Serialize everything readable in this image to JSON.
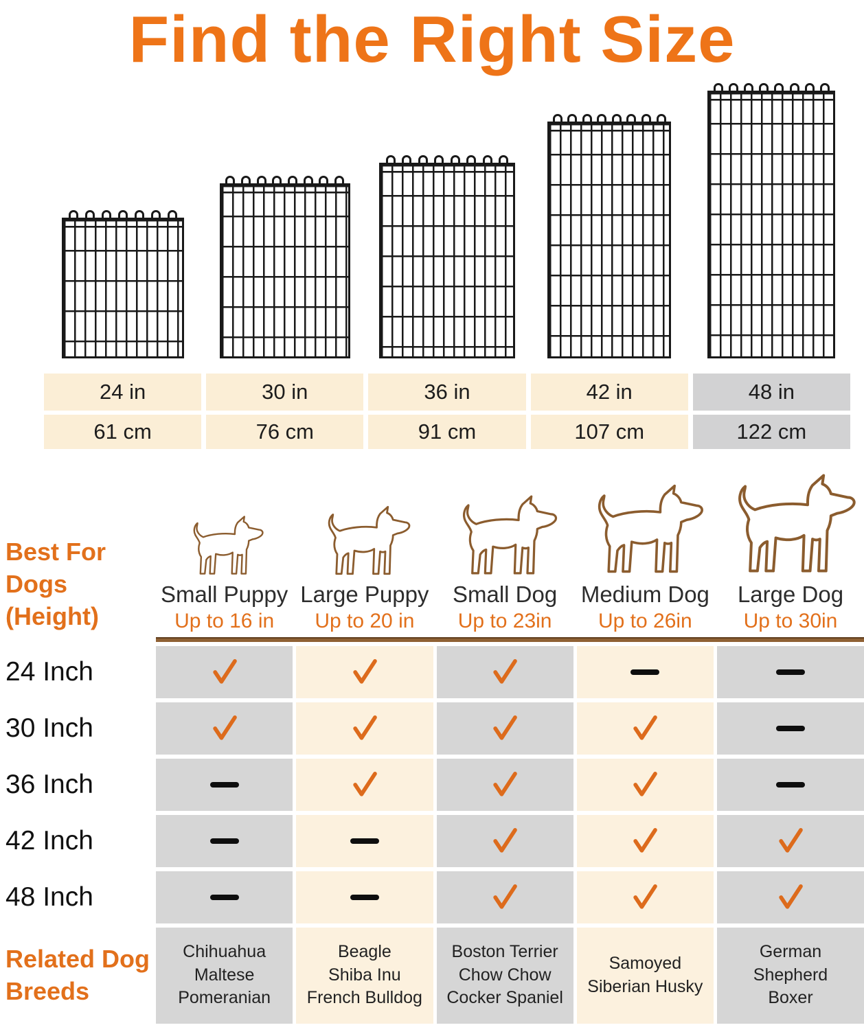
{
  "title": "Find the Right Size",
  "colors": {
    "title": "#EE7418",
    "orange": "#E2701B",
    "check": "#DD6B1C",
    "cream": "#FBEED6",
    "cream2": "#FCF1DE",
    "grayA": "#D2D2D3",
    "grayB": "#D6D6D6",
    "bar": "#8F6134",
    "brown": "#8B5C2E"
  },
  "size_table": {
    "sizes": [
      {
        "inches": "24 in",
        "cm": "61 cm"
      },
      {
        "inches": "30 in",
        "cm": "76 cm"
      },
      {
        "inches": "36 in",
        "cm": "91 cm"
      },
      {
        "inches": "42 in",
        "cm": "107 cm"
      },
      {
        "inches": "48 in",
        "cm": "122 cm"
      }
    ],
    "highlighted_column": "48 in"
  },
  "chart": {
    "best_for_line1": "Best For Dogs",
    "best_for_line2": "(Height)",
    "columns": [
      {
        "name": "Small Puppy",
        "height": "Up to 16 in",
        "icon": "small-puppy-icon"
      },
      {
        "name": "Large Puppy",
        "height": "Up to 20 in",
        "icon": "large-puppy-icon"
      },
      {
        "name": "Small Dog",
        "height": "Up to 23in",
        "icon": "small-dog-icon"
      },
      {
        "name": "Medium Dog",
        "height": "Up to 26in",
        "icon": "medium-dog-icon"
      },
      {
        "name": "Large Dog",
        "height": "Up to 30in",
        "icon": "large-dog-icon"
      }
    ],
    "rows": [
      {
        "label": "24 Inch",
        "cells": [
          "check",
          "check",
          "check",
          "dash",
          "dash"
        ]
      },
      {
        "label": "30 Inch",
        "cells": [
          "check",
          "check",
          "check",
          "check",
          "dash"
        ]
      },
      {
        "label": "36 Inch",
        "cells": [
          "dash",
          "check",
          "check",
          "check",
          "dash"
        ]
      },
      {
        "label": "42 Inch",
        "cells": [
          "dash",
          "dash",
          "check",
          "check",
          "check"
        ]
      },
      {
        "label": "48 Inch",
        "cells": [
          "dash",
          "dash",
          "check",
          "check",
          "check"
        ]
      }
    ],
    "breeds_label_line1": "Related Dog",
    "breeds_label_line2": "Breeds",
    "breeds": [
      [
        "Chihuahua",
        "Maltese",
        "Pomeranian"
      ],
      [
        "Beagle",
        "Shiba Inu",
        "French Bulldog"
      ],
      [
        "Boston Terrier",
        "Chow Chow",
        "Cocker Spaniel"
      ],
      [
        "Samoyed",
        "Siberian Husky"
      ],
      [
        "German",
        "Shepherd",
        "Boxer"
      ]
    ]
  },
  "chart_data": {
    "type": "table",
    "title": "Find the Right Size",
    "panel_widths_in": [
      "24 in",
      "30 in",
      "36 in",
      "42 in",
      "48 in"
    ],
    "panel_widths_cm": [
      "61 cm",
      "76 cm",
      "91 cm",
      "107 cm",
      "122 cm"
    ],
    "columns": [
      "Small Puppy (Up to 16 in)",
      "Large Puppy (Up to 20 in)",
      "Small Dog (Up to 23in)",
      "Medium Dog (Up to 26in)",
      "Large Dog (Up to 30in)"
    ],
    "rows": [
      "24 Inch",
      "30 Inch",
      "36 Inch",
      "42 Inch",
      "48 Inch"
    ],
    "values": [
      [
        1,
        1,
        1,
        0,
        0
      ],
      [
        1,
        1,
        1,
        1,
        0
      ],
      [
        0,
        1,
        1,
        1,
        0
      ],
      [
        0,
        0,
        1,
        1,
        1
      ],
      [
        0,
        0,
        1,
        1,
        1
      ]
    ],
    "related_breeds": [
      [
        "Chihuahua",
        "Maltese",
        "Pomeranian"
      ],
      [
        "Beagle",
        "Shiba Inu",
        "French Bulldog"
      ],
      [
        "Boston Terrier",
        "Chow Chow",
        "Cocker Spaniel"
      ],
      [
        "Samoyed",
        "Siberian Husky"
      ],
      [
        "German Shepherd",
        "Boxer"
      ]
    ]
  }
}
